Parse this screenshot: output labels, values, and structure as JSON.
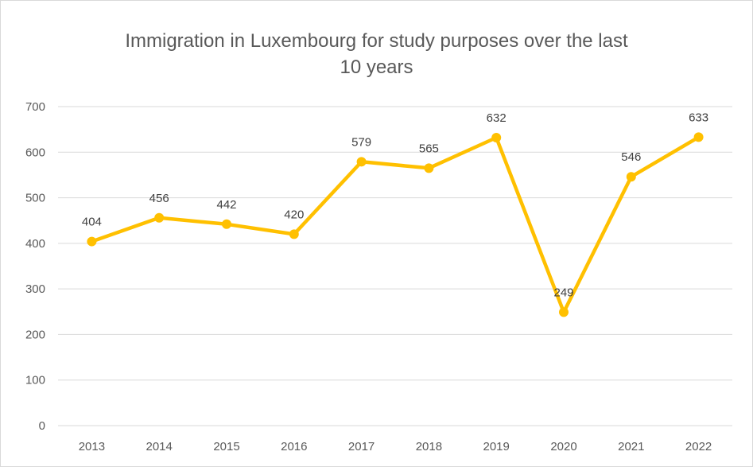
{
  "chart_data": {
    "type": "line",
    "title_lines": [
      "Immigration in Luxembourg for study purposes over the last",
      "10 years"
    ],
    "categories": [
      "2013",
      "2014",
      "2015",
      "2016",
      "2017",
      "2018",
      "2019",
      "2020",
      "2021",
      "2022"
    ],
    "series": [
      {
        "values": [
          404,
          456,
          442,
          420,
          579,
          565,
          632,
          249,
          546,
          633
        ]
      }
    ],
    "data_labels": [
      "404",
      "456",
      "442",
      "420",
      "579",
      "565",
      "632",
      "249",
      "546",
      "633"
    ],
    "ylim": [
      0,
      700
    ],
    "yticks": [
      0,
      100,
      200,
      300,
      400,
      500,
      600,
      700
    ],
    "grid": true,
    "legend": "none",
    "colors": {
      "line": "#FFC000",
      "grid": "#d9d9d9",
      "text": "#595959"
    }
  }
}
